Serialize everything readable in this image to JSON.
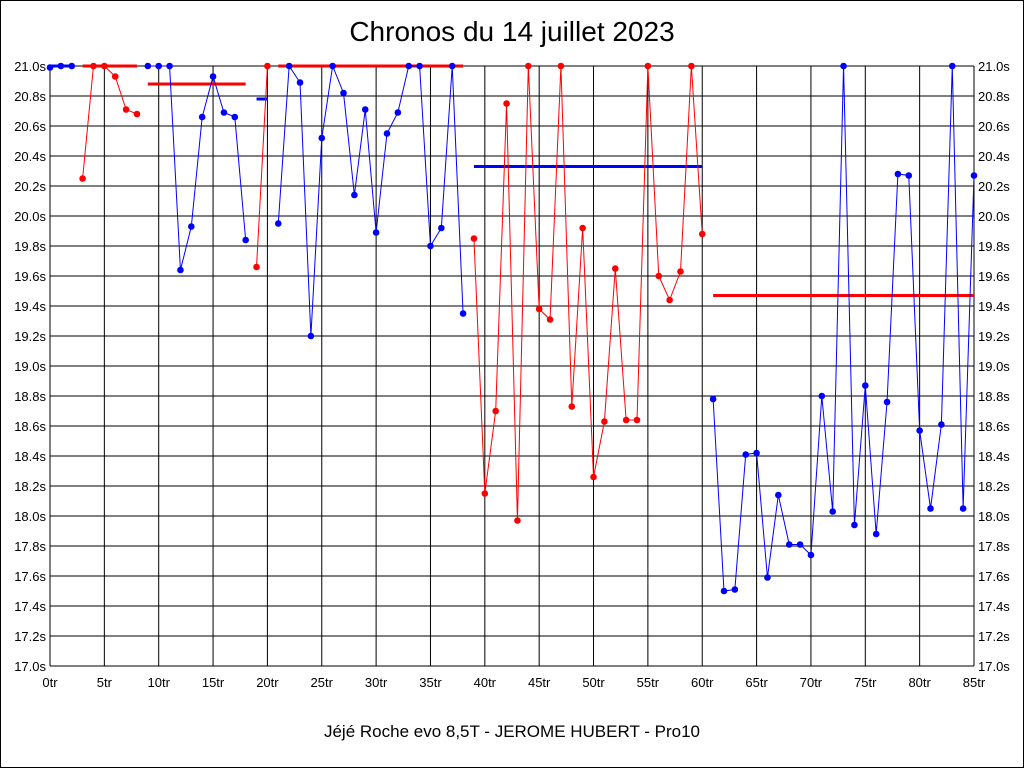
{
  "chart_data": {
    "type": "line",
    "title": "Chronos du 14 juillet 2023",
    "subtitle": "Jéjé Roche evo 8,5T - JEROME HUBERT - Pro10",
    "ylim": [
      17.0,
      21.0
    ],
    "xlim": [
      0,
      85
    ],
    "y_ticks": [
      21.0,
      20.8,
      20.6,
      20.4,
      20.2,
      20.0,
      19.8,
      19.6,
      19.4,
      19.2,
      19.0,
      18.8,
      18.6,
      18.4,
      18.2,
      18.0,
      17.8,
      17.6,
      17.4,
      17.2,
      17.0
    ],
    "y_tick_labels": [
      "21.0s",
      "20.8s",
      "20.6s",
      "20.4s",
      "20.2s",
      "20.0s",
      "19.8s",
      "19.6s",
      "19.4s",
      "19.2s",
      "19.0s",
      "18.8s",
      "18.6s",
      "18.4s",
      "18.2s",
      "18.0s",
      "17.8s",
      "17.6s",
      "17.4s",
      "17.2s",
      "17.0s"
    ],
    "x_ticks": [
      0,
      5,
      10,
      15,
      20,
      25,
      30,
      35,
      40,
      45,
      50,
      55,
      60,
      65,
      70,
      75,
      80,
      85
    ],
    "x_tick_labels": [
      "0tr",
      "5tr",
      "10tr",
      "15tr",
      "20tr",
      "25tr",
      "30tr",
      "35tr",
      "40tr",
      "45tr",
      "50tr",
      "55tr",
      "60tr",
      "65tr",
      "70tr",
      "75tr",
      "80tr",
      "85tr"
    ],
    "grid": true,
    "colors": {
      "blue": "#0000ff",
      "red": "#ff0000"
    },
    "segments": [
      {
        "color": "blue",
        "x": [
          0,
          1,
          2
        ],
        "y": [
          20.99,
          21.0,
          21.0
        ]
      },
      {
        "color": "red",
        "x": [
          3,
          4,
          5,
          6,
          7,
          8
        ],
        "y": [
          20.25,
          21.0,
          21.0,
          20.93,
          20.71,
          20.68
        ]
      },
      {
        "color": "blue",
        "x": [
          9,
          10,
          11,
          12,
          13,
          14,
          15,
          16,
          17,
          18
        ],
        "y": [
          21.0,
          21.0,
          21.0,
          19.64,
          19.93,
          20.66,
          20.93,
          20.69,
          20.66,
          19.84
        ]
      },
      {
        "color": "red",
        "x": [
          19,
          20
        ],
        "y": [
          19.66,
          21.0
        ]
      },
      {
        "color": "blue",
        "x": [
          21,
          22,
          23,
          24,
          25,
          26,
          27,
          28,
          29,
          30,
          31,
          32,
          33,
          34,
          35,
          36,
          37,
          38
        ],
        "y": [
          19.95,
          21.0,
          20.89,
          19.2,
          20.52,
          21.0,
          20.82,
          20.14,
          20.71,
          19.89,
          20.55,
          20.69,
          21.0,
          21.0,
          19.8,
          19.92,
          21.0,
          19.35
        ]
      },
      {
        "color": "red",
        "x": [
          39,
          40,
          41,
          42,
          43,
          44,
          45,
          46,
          47,
          48,
          49,
          50,
          51,
          52,
          53,
          54,
          55,
          56,
          57,
          58,
          59,
          60
        ],
        "y": [
          19.85,
          18.15,
          18.7,
          20.75,
          17.97,
          21.0,
          19.38,
          19.31,
          21.0,
          18.73,
          19.92,
          18.26,
          18.63,
          19.65,
          18.64,
          18.64,
          21.0,
          19.6,
          19.44,
          19.63,
          21.0,
          19.88
        ]
      },
      {
        "color": "blue",
        "x": [
          61,
          62,
          63,
          64,
          65,
          66,
          67,
          68,
          69,
          70,
          71,
          72,
          73,
          74,
          75,
          76,
          77,
          78,
          79,
          80,
          81,
          82,
          83,
          84,
          85
        ],
        "y": [
          18.78,
          17.5,
          17.51,
          18.41,
          18.42,
          17.59,
          18.14,
          17.81,
          17.81,
          17.74,
          18.8,
          18.03,
          21.0,
          17.94,
          18.87,
          17.88,
          18.76,
          20.28,
          20.27,
          18.57,
          18.05,
          18.61,
          21.0,
          18.05,
          20.27
        ]
      }
    ],
    "averages": [
      {
        "color": "blue",
        "x0": 0,
        "x1": 2,
        "y": 21.0
      },
      {
        "color": "red",
        "x0": 3,
        "x1": 8,
        "y": 21.0
      },
      {
        "color": "red",
        "x0": 9,
        "x1": 18,
        "y": 20.88
      },
      {
        "color": "blue",
        "x0": 19,
        "x1": 20,
        "y": 20.78
      },
      {
        "color": "red",
        "x0": 21,
        "x1": 38,
        "y": 21.0
      },
      {
        "color": "blue",
        "x0": 39,
        "x1": 60,
        "y": 20.33
      },
      {
        "color": "red",
        "x0": 61,
        "x1": 85,
        "y": 19.47
      }
    ]
  }
}
